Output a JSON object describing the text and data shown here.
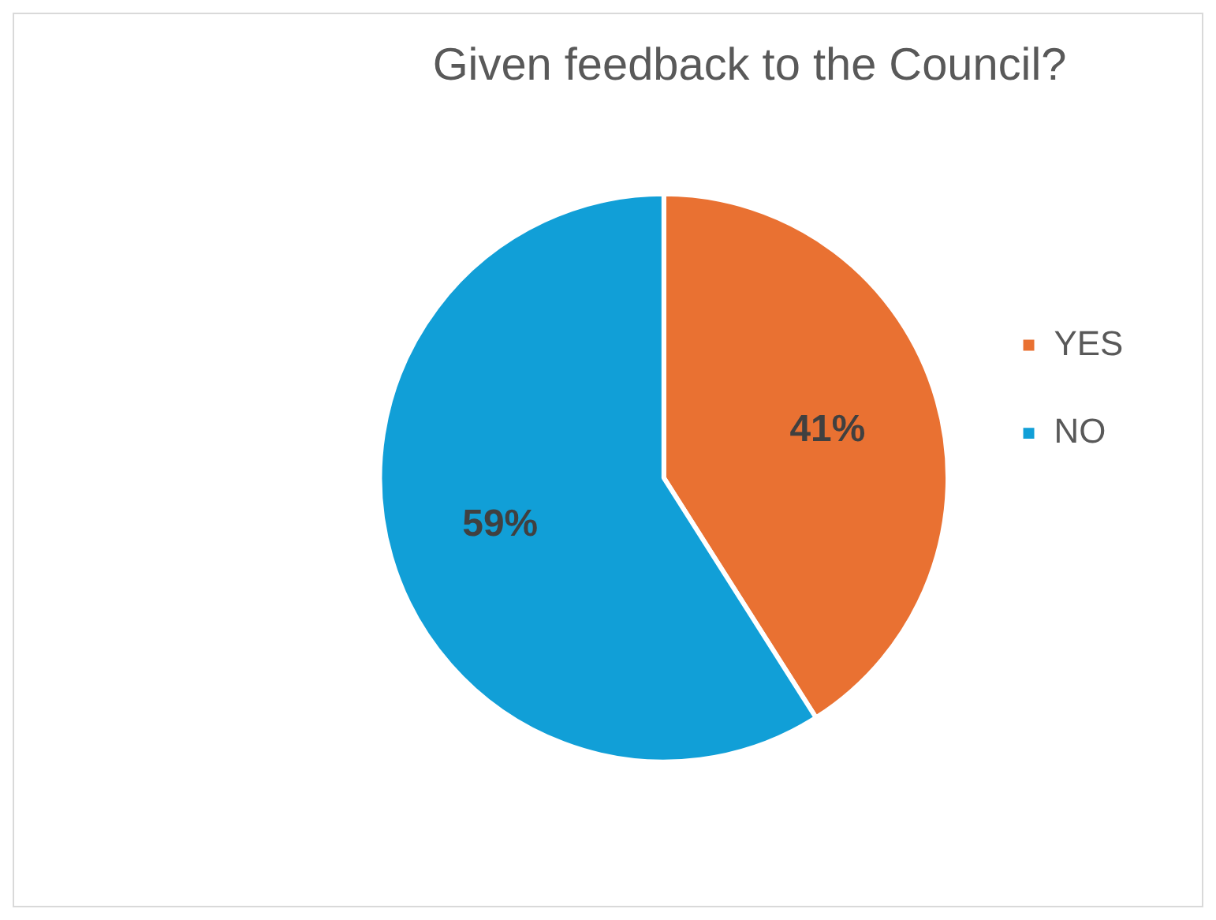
{
  "chart_data": {
    "type": "pie",
    "title": "Given feedback to the Council?",
    "categories": [
      "YES",
      "NO"
    ],
    "values": [
      41,
      59
    ],
    "colors": [
      "#e97132",
      "#119fd7"
    ],
    "value_labels": [
      "41%",
      "59%"
    ],
    "legend": "right"
  }
}
